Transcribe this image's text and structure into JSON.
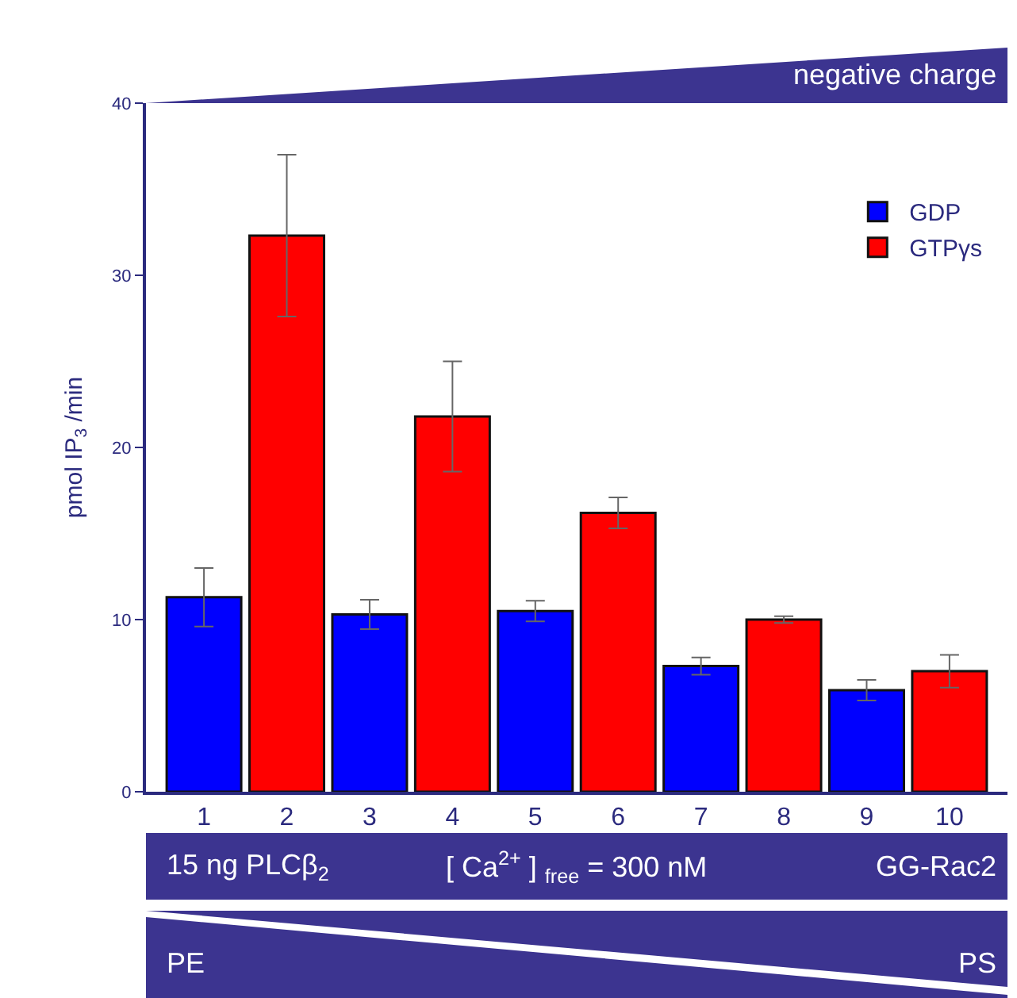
{
  "chart_data": {
    "type": "bar",
    "ylabel": "pmol IP$_{3}$ /min",
    "categories": [
      "1",
      "2",
      "3",
      "4",
      "5",
      "6",
      "7",
      "8",
      "9",
      "10"
    ],
    "series": [
      {
        "name": "GDP",
        "color": "#0000ff",
        "values": [
          11.3,
          null,
          10.3,
          null,
          10.5,
          null,
          7.3,
          null,
          5.9,
          null
        ],
        "errors": [
          1.7,
          null,
          0.85,
          null,
          0.6,
          null,
          0.5,
          null,
          0.6,
          null
        ]
      },
      {
        "name": "GTPγs",
        "color": "#ff0000",
        "values": [
          null,
          32.3,
          null,
          21.8,
          null,
          16.2,
          null,
          10.0,
          null,
          7.0
        ],
        "errors": [
          null,
          4.7,
          null,
          3.2,
          null,
          0.9,
          null,
          0.2,
          null,
          0.95
        ]
      }
    ],
    "ylim": [
      0,
      40
    ],
    "yticks": [
      0,
      10,
      20,
      30,
      40
    ],
    "legend": "top right",
    "annotations": [
      "negative charge",
      "15 ng PLCβ$_{2}$",
      "[ Ca$^{2+}$ ] $_{free}$ = 300 nM",
      "GG-Rac2",
      "PE",
      "PS"
    ]
  }
}
